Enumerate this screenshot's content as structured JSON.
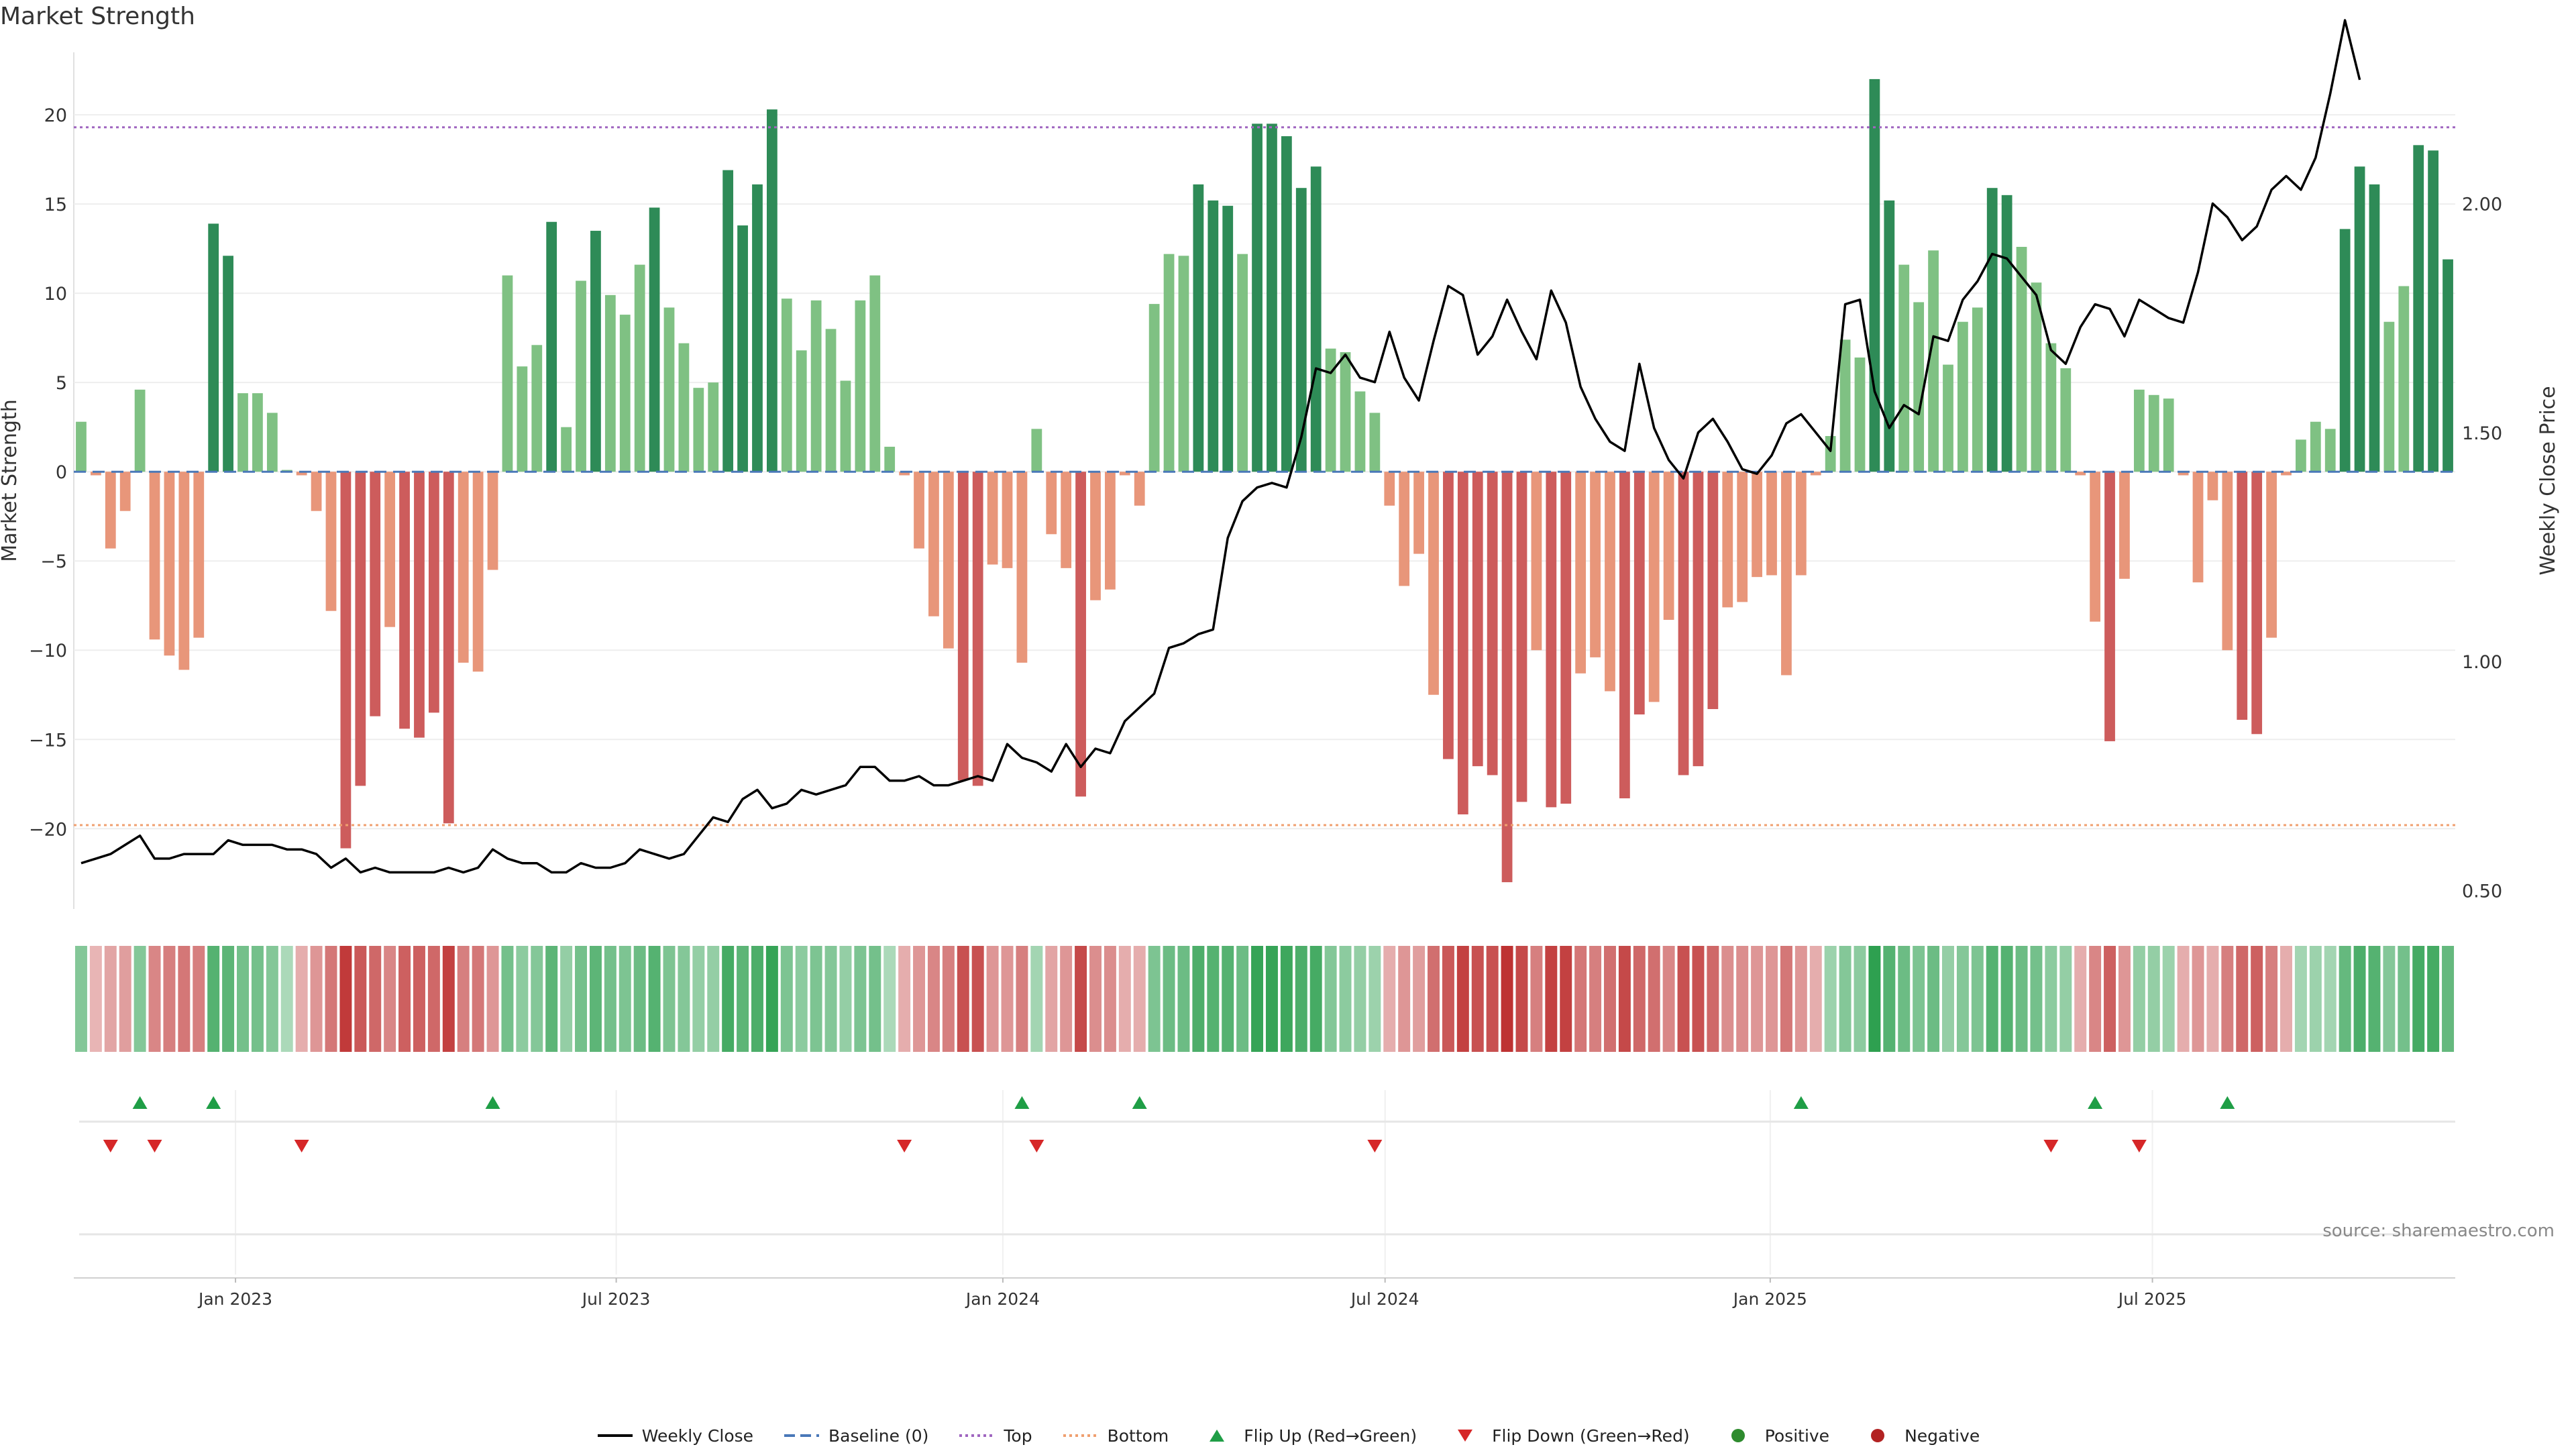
{
  "title": "Market Strength",
  "source": "source: sharemaestro.com",
  "chart_data": {
    "type": "bar",
    "ylabel": "Market Strength",
    "y2label": "Weekly Close Price",
    "ylim": [
      -24.5,
      23.5
    ],
    "y2lim": [
      0.46,
      2.33
    ],
    "yticks": [
      -20,
      -15,
      -10,
      -5,
      0,
      5,
      10,
      15,
      20
    ],
    "y2ticks": [
      "0.50",
      "1.00",
      "1.50",
      "2.00"
    ],
    "top_line": 19.3,
    "bottom_line": -19.8,
    "xticks": [
      {
        "label": "Jan 2023",
        "week": 11.0
      },
      {
        "label": "Jul 2023",
        "week": 36.9
      },
      {
        "label": "Jan 2024",
        "week": 63.2
      },
      {
        "label": "Jul 2024",
        "week": 89.2
      },
      {
        "label": "Jan 2025",
        "week": 115.4
      },
      {
        "label": "Jul 2025",
        "week": 141.4
      }
    ],
    "strength": [
      2.8,
      -0.2,
      -4.3,
      -2.2,
      4.6,
      -9.4,
      -10.3,
      -11.1,
      -9.3,
      13.9,
      12.1,
      4.4,
      4.4,
      3.3,
      0.1,
      -0.2,
      -2.2,
      -7.8,
      -21.1,
      -17.6,
      -13.7,
      -8.7,
      -14.4,
      -14.9,
      -13.5,
      -19.7,
      -10.7,
      -11.2,
      -5.5,
      11.0,
      5.9,
      7.1,
      14.0,
      2.5,
      10.7,
      13.5,
      9.9,
      8.8,
      11.6,
      14.8,
      9.2,
      7.2,
      4.7,
      5.0,
      16.9,
      13.8,
      16.1,
      20.3,
      9.7,
      6.8,
      9.6,
      8.0,
      5.1,
      9.6,
      11.0,
      1.4,
      -0.2,
      -4.3,
      -8.1,
      -9.9,
      -17.3,
      -17.6,
      -5.2,
      -5.4,
      -10.7,
      2.4,
      -3.5,
      -5.4,
      -18.2,
      -7.2,
      -6.6,
      -0.2,
      -1.9,
      9.4,
      12.2,
      12.1,
      16.1,
      15.2,
      14.9,
      12.2,
      19.5,
      19.5,
      18.8,
      15.9,
      17.1,
      6.9,
      6.7,
      4.5,
      3.3,
      -1.9,
      -6.4,
      -4.6,
      -12.5,
      -16.1,
      -19.2,
      -16.5,
      -17.0,
      -23.0,
      -18.5,
      -10.0,
      -18.8,
      -18.6,
      -11.3,
      -10.4,
      -12.3,
      -18.3,
      -13.6,
      -12.9,
      -8.3,
      -17.0,
      -16.5,
      -13.3,
      -7.6,
      -7.3,
      -5.9,
      -5.8,
      -11.4,
      -5.8,
      -0.2,
      2.0,
      7.4,
      6.4,
      22.0,
      15.2,
      11.6,
      9.5,
      12.4,
      6.0,
      8.4,
      9.2,
      15.9,
      15.5,
      12.6,
      10.6,
      7.2,
      5.8,
      -0.2,
      -8.4,
      -15.1,
      -6.0,
      4.6,
      4.3,
      4.1,
      -0.2,
      -6.2,
      -1.6,
      -10.0,
      -13.9,
      -14.7,
      -9.3,
      -0.2,
      1.8,
      2.8,
      2.4,
      13.6,
      17.1,
      16.1,
      8.4,
      10.4,
      18.3,
      18.0,
      11.9
    ],
    "weekly_close": [
      0.56,
      0.57,
      0.58,
      0.6,
      0.62,
      0.57,
      0.57,
      0.58,
      0.58,
      0.58,
      0.61,
      0.6,
      0.6,
      0.6,
      0.59,
      0.59,
      0.58,
      0.55,
      0.57,
      0.54,
      0.55,
      0.54,
      0.54,
      0.54,
      0.54,
      0.55,
      0.54,
      0.55,
      0.59,
      0.57,
      0.56,
      0.56,
      0.54,
      0.54,
      0.56,
      0.55,
      0.55,
      0.56,
      0.59,
      0.58,
      0.57,
      0.58,
      0.62,
      0.66,
      0.65,
      0.7,
      0.72,
      0.68,
      0.69,
      0.72,
      0.71,
      0.72,
      0.73,
      0.77,
      0.77,
      0.74,
      0.74,
      0.75,
      0.73,
      0.73,
      0.74,
      0.75,
      0.74,
      0.82,
      0.79,
      0.78,
      0.76,
      0.82,
      0.77,
      0.81,
      0.8,
      0.87,
      0.9,
      0.93,
      1.03,
      1.04,
      1.06,
      1.07,
      1.27,
      1.35,
      1.38,
      1.39,
      1.38,
      1.49,
      1.64,
      1.63,
      1.67,
      1.62,
      1.61,
      1.72,
      1.62,
      1.57,
      1.7,
      1.82,
      1.8,
      1.67,
      1.71,
      1.79,
      1.72,
      1.66,
      1.81,
      1.74,
      1.6,
      1.53,
      1.48,
      1.46,
      1.65,
      1.51,
      1.44,
      1.4,
      1.5,
      1.53,
      1.48,
      1.42,
      1.41,
      1.45,
      1.52,
      1.54,
      1.5,
      1.46,
      1.78,
      1.79,
      1.59,
      1.51,
      1.56,
      1.54,
      1.71,
      1.7,
      1.79,
      1.83,
      1.89,
      1.88,
      1.84,
      1.8,
      1.68,
      1.65,
      1.73,
      1.78,
      1.77,
      1.71,
      1.79,
      1.77,
      1.75,
      1.74,
      1.85,
      2.0,
      1.97,
      1.92,
      1.95,
      2.03,
      2.06,
      2.03,
      2.1,
      2.24,
      2.4,
      2.27
    ],
    "heat": [
      0.45,
      0.15,
      0.25,
      0.3,
      0.45,
      0.45,
      0.5,
      0.55,
      0.5,
      0.75,
      0.7,
      0.55,
      0.55,
      0.45,
      0.2,
      0.2,
      0.35,
      0.55,
      0.95,
      0.75,
      0.65,
      0.45,
      0.7,
      0.7,
      0.65,
      0.9,
      0.5,
      0.55,
      0.35,
      0.55,
      0.4,
      0.45,
      0.7,
      0.35,
      0.55,
      0.7,
      0.55,
      0.5,
      0.6,
      0.75,
      0.5,
      0.45,
      0.35,
      0.35,
      0.85,
      0.7,
      0.8,
      0.95,
      0.5,
      0.4,
      0.5,
      0.45,
      0.35,
      0.5,
      0.55,
      0.2,
      0.2,
      0.35,
      0.45,
      0.5,
      0.8,
      0.8,
      0.35,
      0.35,
      0.5,
      0.25,
      0.25,
      0.35,
      0.85,
      0.4,
      0.4,
      0.2,
      0.2,
      0.5,
      0.6,
      0.6,
      0.8,
      0.75,
      0.75,
      0.6,
      0.95,
      0.95,
      0.9,
      0.8,
      0.85,
      0.45,
      0.4,
      0.35,
      0.3,
      0.2,
      0.35,
      0.3,
      0.6,
      0.75,
      0.9,
      0.8,
      0.8,
      1.0,
      0.85,
      0.5,
      0.9,
      0.9,
      0.55,
      0.5,
      0.6,
      0.85,
      0.65,
      0.6,
      0.45,
      0.8,
      0.8,
      0.65,
      0.4,
      0.4,
      0.35,
      0.35,
      0.55,
      0.35,
      0.2,
      0.3,
      0.45,
      0.4,
      1.0,
      0.75,
      0.6,
      0.5,
      0.6,
      0.35,
      0.45,
      0.5,
      0.75,
      0.75,
      0.6,
      0.55,
      0.4,
      0.35,
      0.2,
      0.45,
      0.7,
      0.35,
      0.35,
      0.35,
      0.3,
      0.2,
      0.35,
      0.2,
      0.5,
      0.65,
      0.7,
      0.5,
      0.2,
      0.25,
      0.3,
      0.25,
      0.65,
      0.8,
      0.75,
      0.45,
      0.55,
      0.85,
      0.85,
      0.65
    ],
    "flip_up": [
      4,
      9,
      28,
      64,
      72,
      117,
      137,
      146
    ],
    "flip_down": [
      2,
      5,
      15,
      56,
      65,
      88,
      134,
      140
    ],
    "legend": [
      {
        "key": "weekly-close",
        "label": "Weekly Close",
        "color": "#000000"
      },
      {
        "key": "baseline",
        "label": "Baseline (0)",
        "color": "#4a78b8"
      },
      {
        "key": "top",
        "label": "Top",
        "color": "#a066c0"
      },
      {
        "key": "bottom",
        "label": "Bottom",
        "color": "#f0a070"
      },
      {
        "key": "flip-up",
        "label": "Flip Up (Red→Green)",
        "color": "#1f9e46"
      },
      {
        "key": "flip-down",
        "label": "Flip Down (Green→Red)",
        "color": "#d62728"
      },
      {
        "key": "positive",
        "label": "Positive",
        "color": "#2e8b2e"
      },
      {
        "key": "negative",
        "label": "Negative",
        "color": "#b22222"
      }
    ]
  }
}
